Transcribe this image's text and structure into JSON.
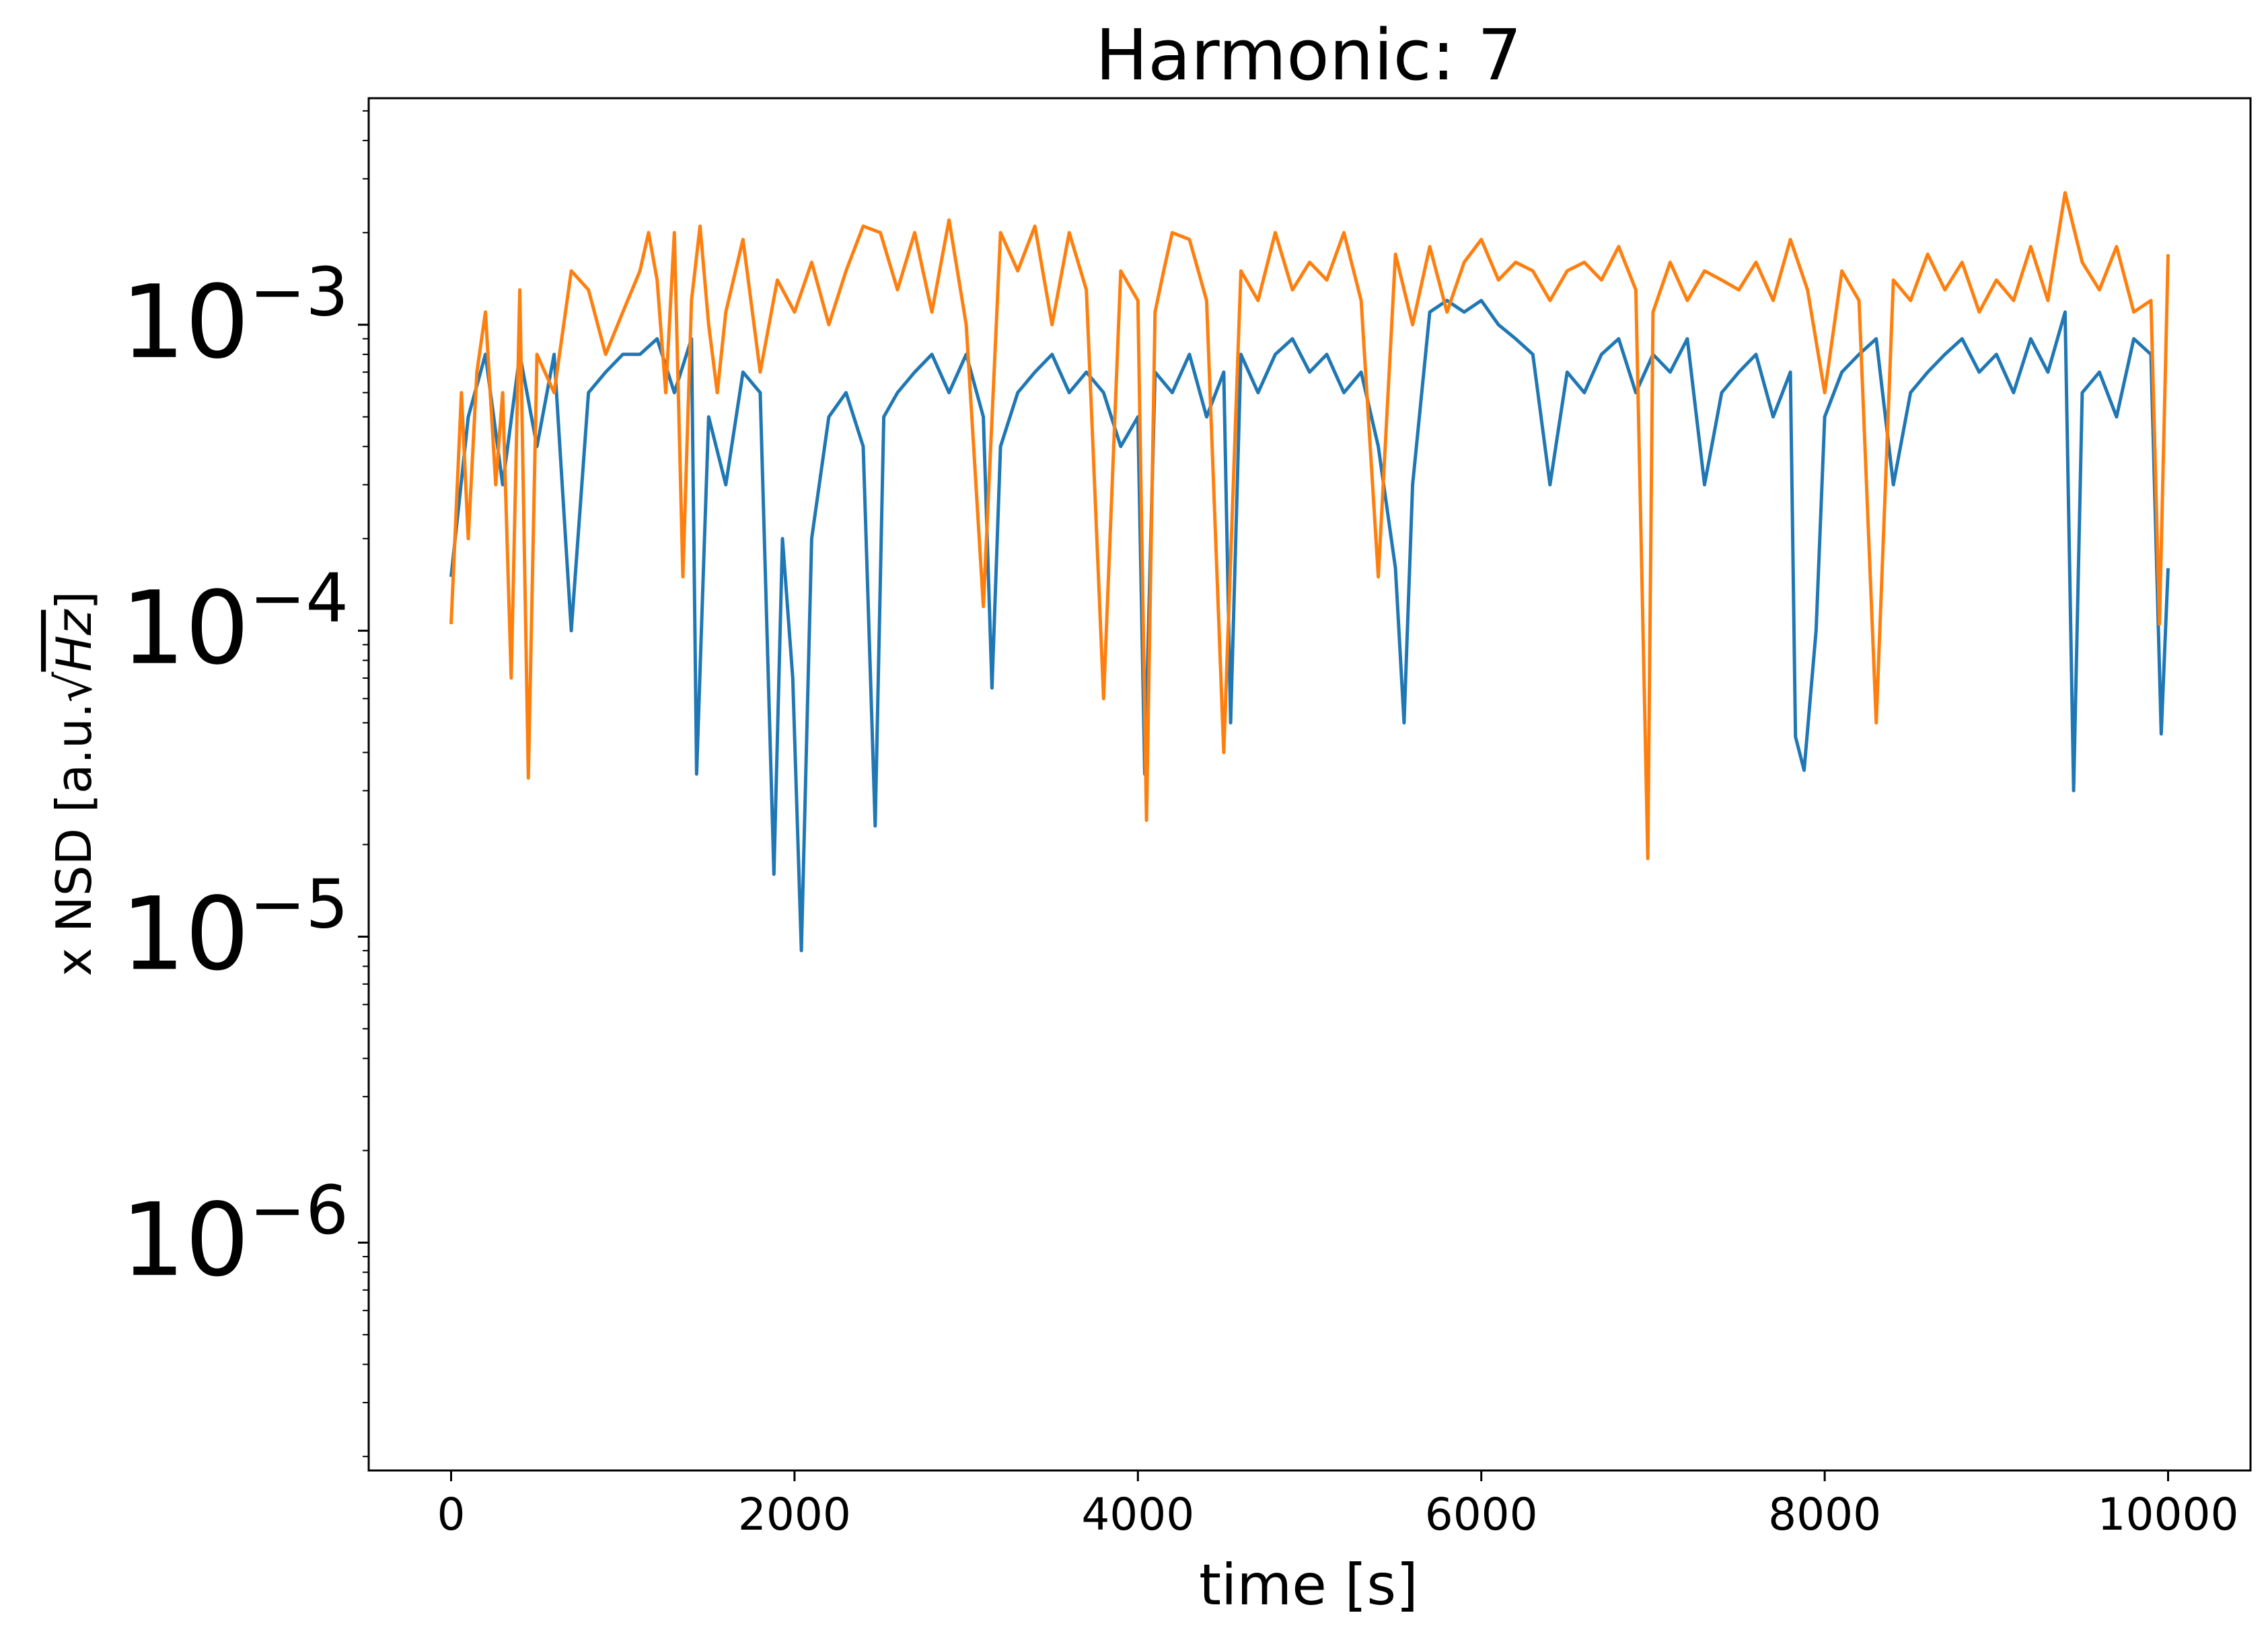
{
  "chart_data": {
    "type": "line",
    "title": "Harmonic: 7",
    "xlabel": "time [s]",
    "ylabel": "x NSD [a.u.√Hz]",
    "ylabel_parts": {
      "prefix": "x NSD [a.u.",
      "radical": "Hz",
      "suffix": "]"
    },
    "xscale": "linear",
    "yscale": "log",
    "xlim": [
      -480,
      10480
    ],
    "ylim": [
      1.8e-07,
      0.0055
    ],
    "grid": false,
    "legend": "none",
    "xticks": [
      0,
      2000,
      4000,
      6000,
      8000,
      10000
    ],
    "xtick_labels": [
      "0",
      "2000",
      "4000",
      "6000",
      "8000",
      "10000"
    ],
    "yticks": [
      {
        "value": 0.001,
        "base": "10",
        "exp": "−3"
      },
      {
        "value": 0.0001,
        "base": "10",
        "exp": "−4"
      },
      {
        "value": 1e-05,
        "base": "10",
        "exp": "−5"
      },
      {
        "value": 1e-06,
        "base": "10",
        "exp": "−6"
      }
    ],
    "series": [
      {
        "color": "#1f77b4",
        "x": [
          0,
          100,
          200,
          300,
          400,
          500,
          600,
          700,
          800,
          900,
          1000,
          1100,
          1200,
          1300,
          1400,
          1430,
          1470,
          1500,
          1600,
          1700,
          1800,
          1880,
          1930,
          1990,
          2040,
          2100,
          2200,
          2300,
          2400,
          2470,
          2520,
          2600,
          2700,
          2800,
          2900,
          3000,
          3100,
          3150,
          3200,
          3300,
          3400,
          3500,
          3600,
          3700,
          3800,
          3900,
          4000,
          4040,
          4100,
          4200,
          4300,
          4400,
          4500,
          4540,
          4600,
          4700,
          4800,
          4900,
          5000,
          5100,
          5200,
          5300,
          5400,
          5500,
          5550,
          5600,
          5700,
          5800,
          5900,
          6000,
          6100,
          6200,
          6300,
          6400,
          6500,
          6600,
          6700,
          6800,
          6900,
          7000,
          7100,
          7200,
          7300,
          7400,
          7500,
          7600,
          7700,
          7800,
          7830,
          7880,
          7950,
          8000,
          8100,
          8200,
          8300,
          8400,
          8500,
          8600,
          8700,
          8800,
          8900,
          9000,
          9100,
          9200,
          9300,
          9400,
          9450,
          9500,
          9600,
          9700,
          9800,
          9900,
          9960,
          10000
        ],
        "y": [
          0.00015,
          0.0005,
          0.0008,
          0.0003,
          0.0008,
          0.0004,
          0.0008,
          0.0001,
          0.0006,
          0.0007,
          0.0008,
          0.0008,
          0.0009,
          0.0006,
          0.0009,
          3.4e-05,
          0.00016,
          0.0005,
          0.0003,
          0.0007,
          0.0006,
          1.6e-05,
          0.0002,
          7e-05,
          9e-06,
          0.0002,
          0.0005,
          0.0006,
          0.0004,
          2.3e-05,
          0.0005,
          0.0006,
          0.0007,
          0.0008,
          0.0006,
          0.0008,
          0.0005,
          6.5e-05,
          0.0004,
          0.0006,
          0.0007,
          0.0008,
          0.0006,
          0.0007,
          0.0006,
          0.0004,
          0.0005,
          3.4e-05,
          0.0007,
          0.0006,
          0.0008,
          0.0005,
          0.0007,
          5e-05,
          0.0008,
          0.0006,
          0.0008,
          0.0009,
          0.0007,
          0.0008,
          0.0006,
          0.0007,
          0.0004,
          0.00016,
          5e-05,
          0.0003,
          0.0011,
          0.0012,
          0.0011,
          0.0012,
          0.001,
          0.0009,
          0.0008,
          0.0003,
          0.0007,
          0.0006,
          0.0008,
          0.0009,
          0.0006,
          0.0008,
          0.0007,
          0.0009,
          0.0003,
          0.0006,
          0.0007,
          0.0008,
          0.0005,
          0.0007,
          4.5e-05,
          3.5e-05,
          0.0001,
          0.0005,
          0.0007,
          0.0008,
          0.0009,
          0.0003,
          0.0006,
          0.0007,
          0.0008,
          0.0009,
          0.0007,
          0.0008,
          0.0006,
          0.0009,
          0.0007,
          0.0011,
          3e-05,
          0.0006,
          0.0007,
          0.0005,
          0.0009,
          0.0008,
          4.6e-05,
          0.00016
        ]
      },
      {
        "color": "#ff7f0e",
        "x": [
          0,
          60,
          100,
          150,
          200,
          260,
          300,
          350,
          400,
          450,
          500,
          600,
          700,
          800,
          900,
          1000,
          1100,
          1150,
          1200,
          1250,
          1300,
          1350,
          1400,
          1450,
          1500,
          1550,
          1600,
          1700,
          1800,
          1900,
          2000,
          2100,
          2200,
          2300,
          2400,
          2500,
          2600,
          2700,
          2800,
          2900,
          3000,
          3100,
          3200,
          3300,
          3400,
          3500,
          3600,
          3700,
          3800,
          3900,
          4000,
          4050,
          4100,
          4150,
          4200,
          4300,
          4400,
          4500,
          4600,
          4700,
          4800,
          4900,
          5000,
          5100,
          5200,
          5300,
          5400,
          5500,
          5600,
          5700,
          5800,
          5900,
          6000,
          6100,
          6200,
          6300,
          6400,
          6500,
          6600,
          6700,
          6800,
          6900,
          6970,
          7000,
          7100,
          7200,
          7300,
          7400,
          7500,
          7600,
          7700,
          7800,
          7900,
          8000,
          8100,
          8200,
          8300,
          8400,
          8500,
          8600,
          8700,
          8800,
          8900,
          9000,
          9100,
          9200,
          9300,
          9400,
          9500,
          9600,
          9700,
          9800,
          9900,
          9950,
          10000
        ],
        "y": [
          0.000105,
          0.0006,
          0.0002,
          0.0007,
          0.0011,
          0.0003,
          0.0006,
          7e-05,
          0.0013,
          3.3e-05,
          0.0008,
          0.0006,
          0.0015,
          0.0013,
          0.0008,
          0.0011,
          0.0015,
          0.002,
          0.0014,
          0.0006,
          0.002,
          0.00015,
          0.0012,
          0.0021,
          0.001,
          0.0006,
          0.0011,
          0.0019,
          0.0007,
          0.0014,
          0.0011,
          0.0016,
          0.001,
          0.0015,
          0.0021,
          0.002,
          0.0013,
          0.002,
          0.0011,
          0.0022,
          0.001,
          0.00012,
          0.002,
          0.0015,
          0.0021,
          0.001,
          0.002,
          0.0013,
          6e-05,
          0.0015,
          0.0012,
          2.4e-05,
          0.0011,
          0.0015,
          0.002,
          0.0019,
          0.0012,
          4e-05,
          0.0015,
          0.0012,
          0.002,
          0.0013,
          0.0016,
          0.0014,
          0.002,
          0.0012,
          0.00015,
          0.0017,
          0.001,
          0.0018,
          0.0011,
          0.0016,
          0.0019,
          0.0014,
          0.0016,
          0.0015,
          0.0012,
          0.0015,
          0.0016,
          0.0014,
          0.0018,
          0.0013,
          1.8e-05,
          0.0011,
          0.0016,
          0.0012,
          0.0015,
          0.0014,
          0.0013,
          0.0016,
          0.0012,
          0.0019,
          0.0013,
          0.0006,
          0.0015,
          0.0012,
          5e-05,
          0.0014,
          0.0012,
          0.0017,
          0.0013,
          0.0016,
          0.0011,
          0.0014,
          0.0012,
          0.0018,
          0.0012,
          0.0027,
          0.0016,
          0.0013,
          0.0018,
          0.0011,
          0.0012,
          0.000105,
          0.0017
        ]
      }
    ]
  }
}
